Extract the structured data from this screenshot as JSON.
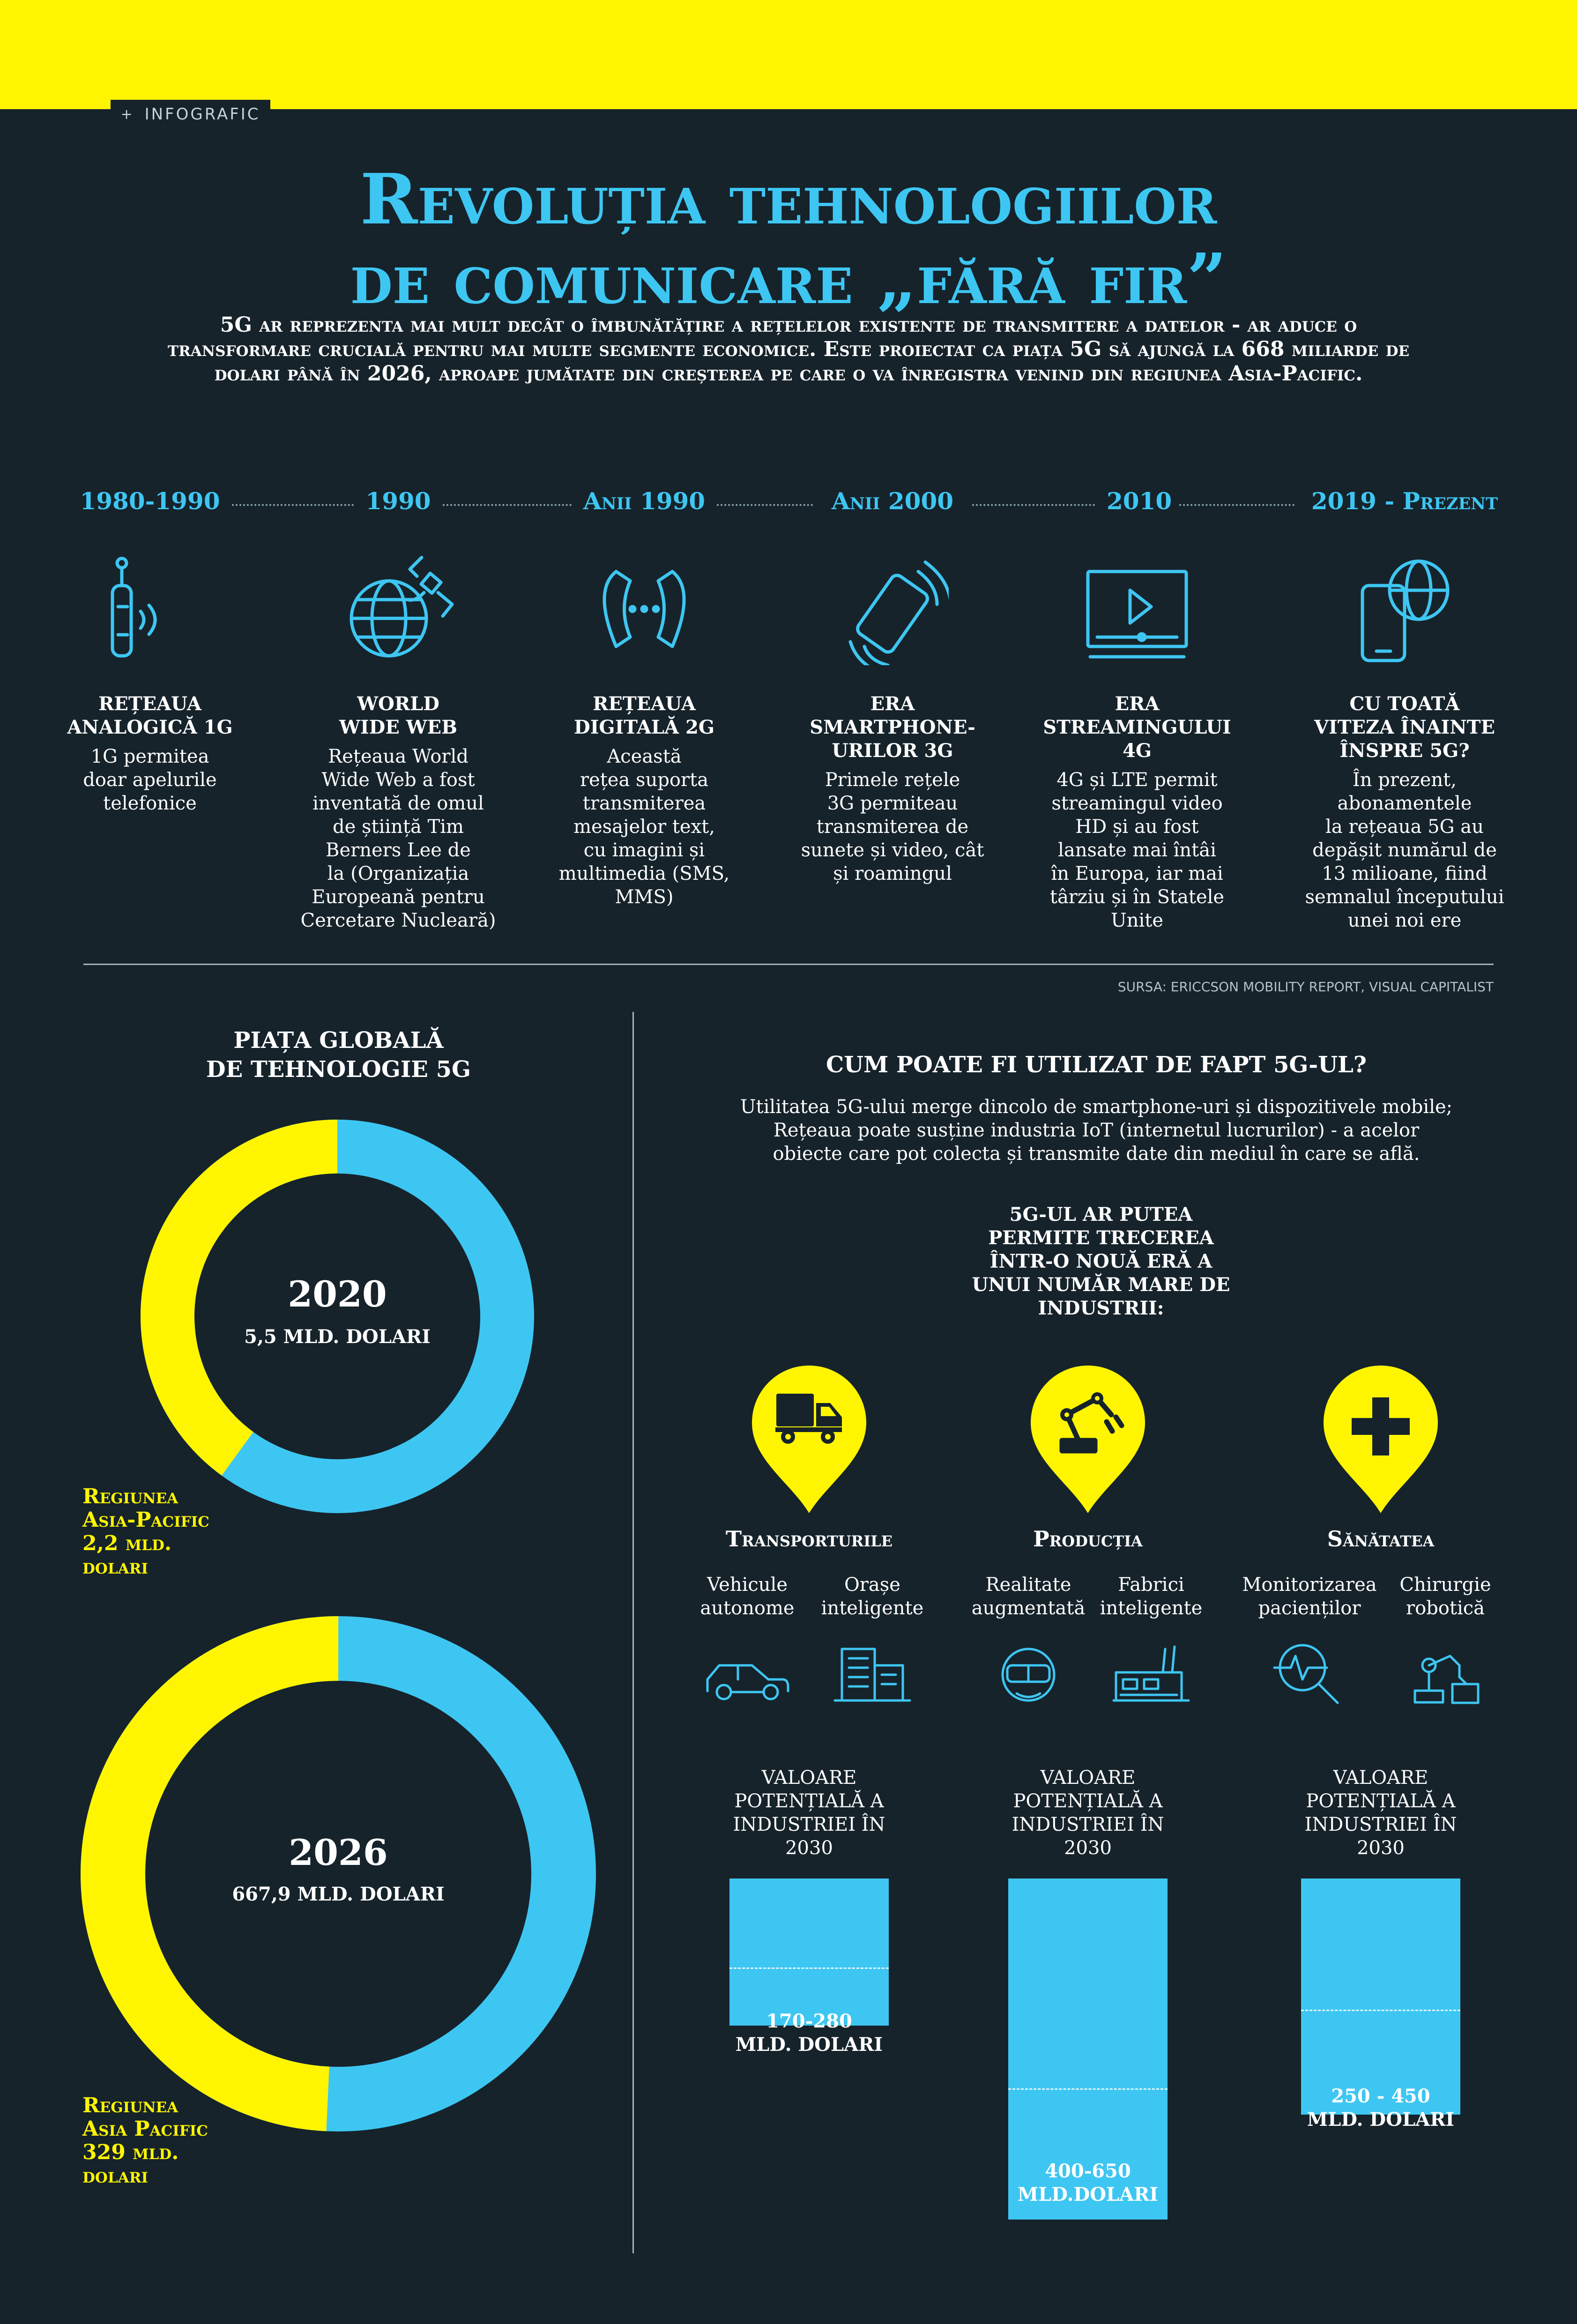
{
  "header": {
    "tag": "INFOGRAFIC",
    "title_line1": "Revoluția tehnologiilor",
    "title_line2": "de comunicare „fără fir”",
    "intro": "5G ar reprezenta mai mult decât o îmbunătățire a rețelelor existente de transmitere a datelor - ar aduce o transformare crucială pentru mai multe segmente economice. Este proiectat ca piața 5G să ajungă la 668 miliarde de dolari până în 2026, aproape jumătate din creșterea pe care o va înregistra venind din regiunea Asia-Pacific."
  },
  "timeline": [
    {
      "period": "1980-1990",
      "title": [
        "REȚEAUA",
        "ANALOGICĂ 1G"
      ],
      "text": [
        "1G permitea",
        "doar apelurile",
        "telefonice"
      ],
      "icon": "analog-phone-icon"
    },
    {
      "period": "1990",
      "title": [
        "WORLD",
        "WIDE WEB"
      ],
      "text": [
        "Rețeaua World",
        "Wide Web a fost",
        "inventată de omul",
        "de știință Tim",
        "Berners Lee de",
        "la (Organizația",
        "Europeană pentru",
        "Cercetare Nucleară)"
      ],
      "icon": "globe-satellite-icon"
    },
    {
      "period": "Anii 1990",
      "title": [
        "REȚEAUA",
        "DIGITALĂ 2G"
      ],
      "text": [
        "Această",
        "rețea suporta",
        "transmiterea",
        "mesajelor text,",
        "cu imagini și",
        "multimedia (SMS,",
        "MMS)"
      ],
      "icon": "phone-call-icon"
    },
    {
      "period": "Anii 2000",
      "title": [
        "ERA",
        "SMARTPHONE-",
        "URILOR 3G"
      ],
      "text": [
        "Primele rețele",
        "3G permiteau",
        "transmiterea de",
        "sunete și video,  cât",
        "și roamingul"
      ],
      "icon": "smartphone-ringing-icon"
    },
    {
      "period": "2010",
      "title": [
        "ERA",
        "STREAMINGULUI",
        "4G"
      ],
      "text": [
        "4G și LTE permit",
        "streamingul video",
        "HD și au fost",
        "lansate mai întâi",
        "în Europa, iar mai",
        "târziu și în Statele",
        "Unite"
      ],
      "icon": "video-player-icon"
    },
    {
      "period": "2019 - Prezent",
      "title": [
        "CU TOATĂ",
        "VITEZA ÎNAINTE",
        "ÎNSPRE 5G?"
      ],
      "text": [
        "În prezent,",
        "abonamentele",
        "la rețeaua 5G au",
        "depășit numărul de",
        "13 milioane, fiind",
        "semnalul începutului",
        "unei noi ere"
      ],
      "icon": "phone-globe-icon"
    }
  ],
  "source": "SURSA: ERICCSON MOBILITY REPORT, VISUAL CAPITALIST",
  "market": {
    "title": [
      "PIAȚA GLOBALĂ",
      "DE TEHNOLOGIE 5G"
    ],
    "donuts": [
      {
        "year": "2020",
        "total": "5,5 MLD. DOLARI",
        "total_value": 5.5,
        "region_value": 2.2,
        "region_label": [
          "Regiunea",
          "Asia-Pacific",
          "2,2 mld.",
          "dolari"
        ]
      },
      {
        "year": "2026",
        "total": "667,9 MLD. DOLARI",
        "total_value": 667.9,
        "region_value": 329,
        "region_label": [
          "Regiunea",
          "Asia Pacific",
          "329 mld.",
          "dolari"
        ]
      }
    ],
    "colors": {
      "total": "#3ec6f2",
      "region": "#fff500"
    }
  },
  "usage": {
    "title": "CUM POATE FI UTILIZAT DE FAPT 5G-UL?",
    "text": [
      "Utilitatea 5G-ului merge dincolo de smartphone-uri și dispozitivele mobile;",
      "Rețeaua poate susține industria IoT (internetul lucrurilor) - a acelor",
      "obiecte care pot colecta și transmite date din mediul în care se află."
    ],
    "permit": [
      "5G-UL AR PUTEA",
      "PERMITE TRECEREA",
      "ÎNTR-O NOUĂ ERĂ A",
      "UNUI NUMĂR MARE DE",
      "INDUSTRII:"
    ],
    "industries": [
      {
        "name": "Transporturile",
        "icon": "truck-icon",
        "subs": [
          {
            "label": [
              "Vehicule",
              "autonome"
            ],
            "icon": "car-icon"
          },
          {
            "label": [
              "Orașe",
              "inteligente"
            ],
            "icon": "buildings-icon"
          }
        ],
        "value_label": [
          "VALOARE",
          "POTENȚIALĂ A",
          "INDUSTRIEI ÎN",
          "2030"
        ],
        "amount": [
          "170-280",
          "MLD. DOLARI"
        ],
        "min": 170,
        "max": 280
      },
      {
        "name": "Producția",
        "icon": "robot-arm-icon",
        "subs": [
          {
            "label": [
              "Realitate",
              "augmentată"
            ],
            "icon": "vr-headset-icon"
          },
          {
            "label": [
              "Fabrici",
              "inteligente"
            ],
            "icon": "factory-icon"
          }
        ],
        "value_label": [
          "VALOARE",
          "POTENȚIALĂ A",
          "INDUSTRIEI ÎN",
          "2030"
        ],
        "amount": [
          "400-650",
          "MLD.DOLARI"
        ],
        "min": 400,
        "max": 650
      },
      {
        "name": "Sănătatea",
        "icon": "medical-cross-icon",
        "subs": [
          {
            "label": [
              "Monitorizarea",
              "pacienților"
            ],
            "icon": "magnifier-pulse-icon"
          },
          {
            "label": [
              "Chirurgie",
              "robotică"
            ],
            "icon": "surgical-robot-icon"
          }
        ],
        "value_label": [
          "VALOARE",
          "POTENȚIALĂ A",
          "INDUSTRIEI ÎN",
          "2030"
        ],
        "amount": [
          "250 - 450",
          "MLD. DOLARI"
        ],
        "min": 250,
        "max": 450
      }
    ],
    "colors": {
      "bar": "#3ec6f2",
      "pin": "#fff500"
    }
  }
}
